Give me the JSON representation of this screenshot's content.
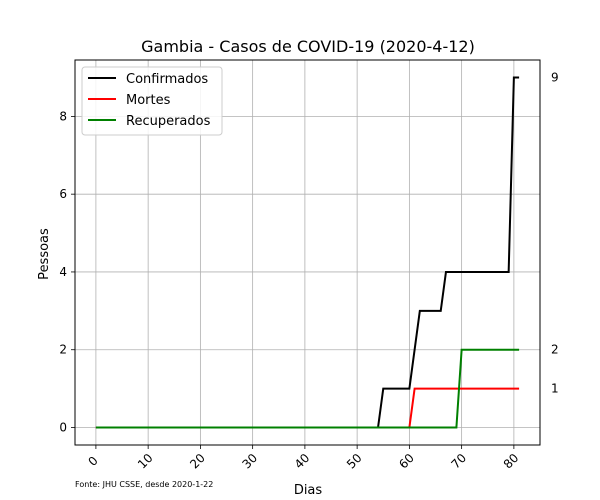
{
  "chart_data": {
    "type": "line",
    "title": "Gambia - Casos de COVID-19 (2020-4-12)",
    "xlabel": "Dias",
    "ylabel": "Pessoas",
    "xlim": [
      -4,
      85
    ],
    "ylim": [
      -0.45,
      9.45
    ],
    "xticks": [
      0,
      10,
      20,
      30,
      40,
      50,
      60,
      70,
      80
    ],
    "yticks": [
      0,
      2,
      4,
      6,
      8
    ],
    "grid": true,
    "legend_position": "top-left",
    "source_note": "Fonte: JHU CSSE, desde 2020-1-22",
    "series": [
      {
        "name": "Confirmados",
        "color": "#000000",
        "points": [
          [
            0,
            0
          ],
          [
            54,
            0
          ],
          [
            55,
            1
          ],
          [
            60,
            1
          ],
          [
            62,
            3
          ],
          [
            66,
            3
          ],
          [
            67,
            4
          ],
          [
            79,
            4
          ],
          [
            80,
            9
          ],
          [
            81,
            9
          ]
        ],
        "end_label": "9"
      },
      {
        "name": "Mortes",
        "color": "#ff0000",
        "points": [
          [
            0,
            0
          ],
          [
            60,
            0
          ],
          [
            61,
            1
          ],
          [
            81,
            1
          ]
        ],
        "end_label": "1"
      },
      {
        "name": "Recuperados",
        "color": "#008000",
        "points": [
          [
            0,
            0
          ],
          [
            69,
            0
          ],
          [
            70,
            2
          ],
          [
            81,
            2
          ]
        ],
        "end_label": "2"
      }
    ]
  }
}
